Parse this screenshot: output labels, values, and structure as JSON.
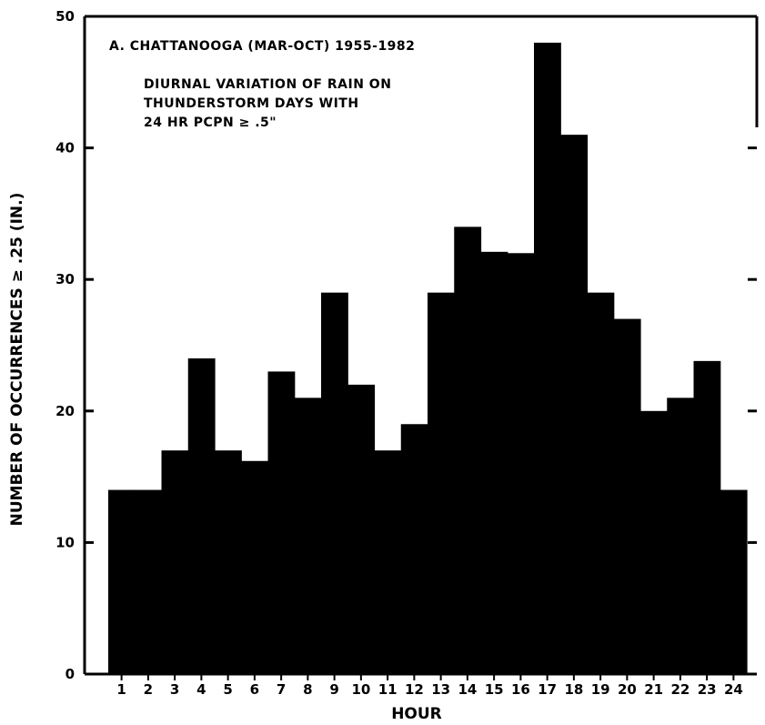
{
  "chart_data": {
    "type": "bar",
    "title": "A.  CHATTANOOGA   (MAR-OCT)  1955-1982",
    "subtitle_lines": [
      "DIURNAL  VARIATION  OF  RAIN  ON",
      "THUNDERSTORM   DAYS  WITH",
      "24  HR  PCPN ≥ .5\""
    ],
    "xlabel": "HOUR",
    "ylabel": "NUMBER OF OCCURRENCES  ≥ .25  (IN.)",
    "categories": [
      "1",
      "2",
      "3",
      "4",
      "5",
      "6",
      "7",
      "8",
      "9",
      "10",
      "11",
      "12",
      "13",
      "14",
      "15",
      "16",
      "17",
      "18",
      "19",
      "20",
      "21",
      "22",
      "23",
      "24"
    ],
    "values": [
      14,
      14,
      17,
      24,
      17,
      16.2,
      23,
      21,
      29,
      22,
      17,
      19,
      29,
      34,
      32.1,
      32,
      48,
      41,
      29,
      27,
      20,
      21,
      23.8,
      14
    ],
    "ylim": [
      0,
      50
    ],
    "yticks": [
      "0",
      "10",
      "20",
      "30",
      "40",
      "50"
    ],
    "grid": false,
    "bar_color": "#000000"
  }
}
